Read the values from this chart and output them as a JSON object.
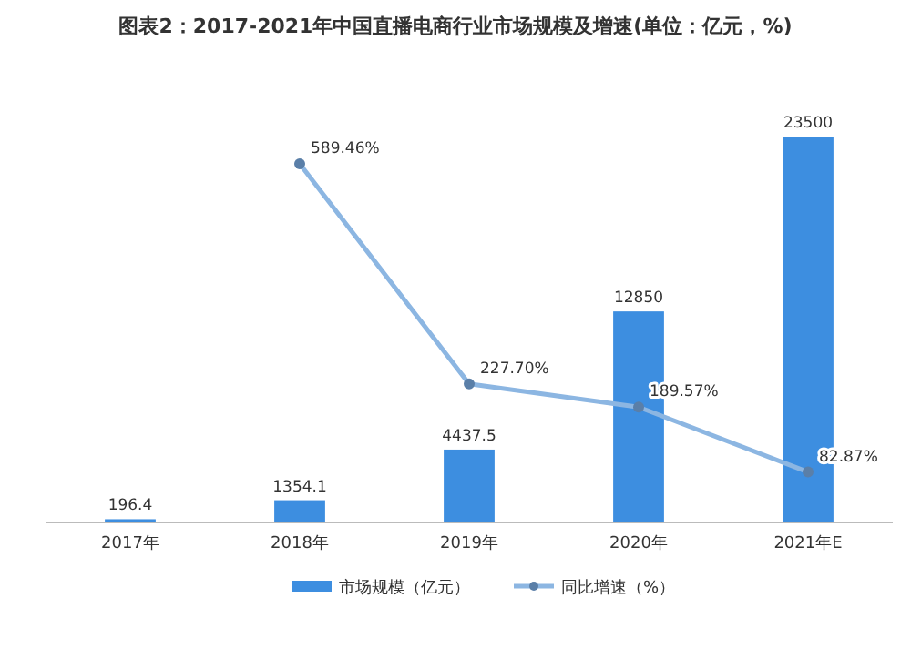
{
  "chart_data": {
    "type": "bar",
    "title": "图表2：2017-2021年中国直播电商行业市场规模及增速(单位：亿元，%)",
    "categories": [
      "2017年",
      "2018年",
      "2019年",
      "2020年",
      "2021年E"
    ],
    "series": [
      {
        "name": "市场规模（亿元）",
        "color": "#3d8ee0",
        "values": [
          196.4,
          1354.1,
          4437.5,
          12850,
          23500
        ],
        "value_labels": [
          "196.4",
          "1354.1",
          "4437.5",
          "12850",
          "23500"
        ]
      },
      {
        "name": "同比增速（%）",
        "type": "line",
        "axis": "y2",
        "color": "#8cb6e2",
        "values": [
          null,
          589.46,
          227.7,
          189.57,
          82.87
        ],
        "value_labels": [
          null,
          "589.46%",
          "227.70%",
          "189.57%",
          "82.87%"
        ]
      }
    ],
    "legend": "bottom",
    "marker": "circle",
    "grid": false
  }
}
